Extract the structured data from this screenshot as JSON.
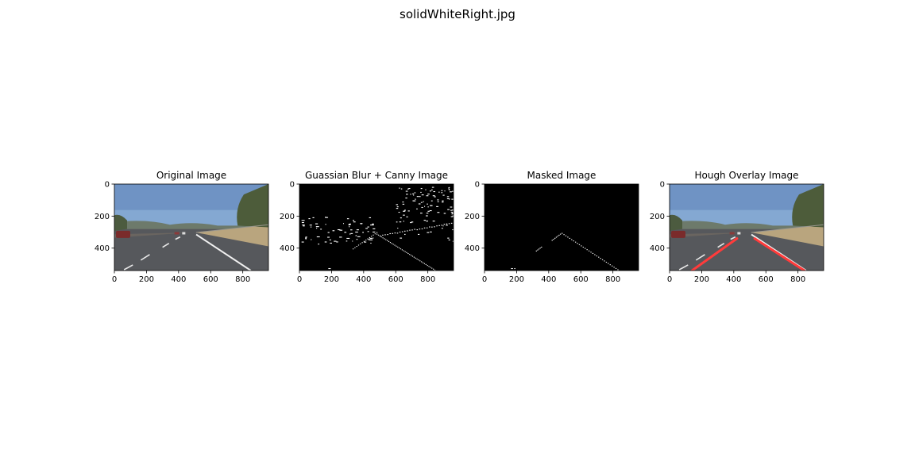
{
  "figure": {
    "title": "solidWhiteRight.jpg"
  },
  "chart_data": [
    {
      "type": "image",
      "title": "Original Image",
      "content": "road-photo",
      "xlim": [
        0,
        960
      ],
      "ylim": [
        540,
        0
      ],
      "xticks": [
        0,
        200,
        400,
        600,
        800
      ],
      "yticks": [
        0,
        200,
        400
      ]
    },
    {
      "type": "image",
      "title": "Guassian Blur + Canny Image",
      "content": "canny-edges",
      "xlim": [
        0,
        960
      ],
      "ylim": [
        540,
        0
      ],
      "xticks": [
        0,
        200,
        400,
        600,
        800
      ],
      "yticks": [
        0,
        200,
        400
      ]
    },
    {
      "type": "image",
      "title": "Masked Image",
      "content": "masked-edges",
      "xlim": [
        0,
        960
      ],
      "ylim": [
        540,
        0
      ],
      "xticks": [
        0,
        200,
        400,
        600,
        800
      ],
      "yticks": [
        0,
        200,
        400
      ]
    },
    {
      "type": "image",
      "title": "Hough Overlay Image",
      "content": "road-photo-with-hough-lines",
      "xlim": [
        0,
        960
      ],
      "ylim": [
        540,
        0
      ],
      "xticks": [
        0,
        200,
        400,
        600,
        800
      ],
      "yticks": [
        0,
        200,
        400
      ],
      "lane_lines": [
        {
          "x": [
            140,
            420
          ],
          "y": [
            540,
            340
          ]
        },
        {
          "x": [
            530,
            840
          ],
          "y": [
            340,
            540
          ]
        }
      ],
      "lane_line_color": "#ff3b3b"
    }
  ],
  "colors": {
    "edge": "#ffffff",
    "background": "#000000",
    "hough": "#ff3b3b"
  }
}
